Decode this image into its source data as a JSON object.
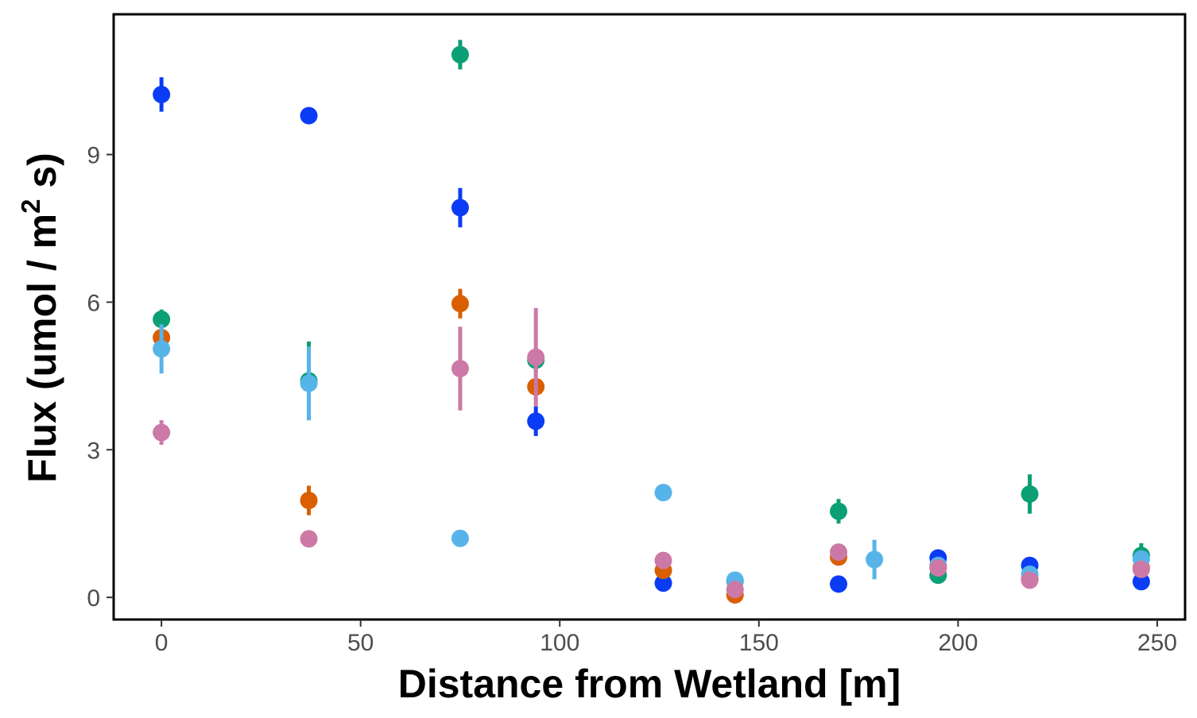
{
  "chart_data": {
    "type": "scatter",
    "title": "",
    "xlabel": "Distance from Wetland [m]",
    "ylabel": {
      "before": "Flux (umol / m",
      "superscript": "2",
      "after": " s)"
    },
    "xlim": [
      -12,
      257
    ],
    "ylim": [
      -0.45,
      11.85
    ],
    "x_ticks": [
      {
        "value": 0,
        "label": "0"
      },
      {
        "value": 50,
        "label": "50"
      },
      {
        "value": 100,
        "label": "100"
      },
      {
        "value": 150,
        "label": "150"
      },
      {
        "value": 200,
        "label": "200"
      },
      {
        "value": 250,
        "label": "250"
      }
    ],
    "y_ticks": [
      {
        "value": 0,
        "label": "0"
      },
      {
        "value": 3,
        "label": "3"
      },
      {
        "value": 6,
        "label": "6"
      },
      {
        "value": 9,
        "label": "9"
      }
    ],
    "grid": false,
    "legend": "none",
    "series": [
      {
        "color": "#0b3cf5",
        "points": [
          {
            "x": 0,
            "y": 10.22,
            "err": 0.35
          },
          {
            "x": 37,
            "y": 9.79,
            "err": 0.1
          },
          {
            "x": 75,
            "y": 7.92,
            "err": 0.4
          },
          {
            "x": 94,
            "y": 3.58,
            "err": 0.3
          },
          {
            "x": 126,
            "y": 0.29,
            "err": 0.08
          },
          {
            "x": 170,
            "y": 0.27,
            "err": 0.06
          },
          {
            "x": 195,
            "y": 0.8,
            "err": 0.1
          },
          {
            "x": 218,
            "y": 0.65,
            "err": 0.08
          },
          {
            "x": 246,
            "y": 0.32,
            "err": 0.06
          }
        ]
      },
      {
        "color": "#0b9f75",
        "points": [
          {
            "x": 0,
            "y": 5.65,
            "err": 0.2
          },
          {
            "x": 37,
            "y": 4.4,
            "err": 0.8
          },
          {
            "x": 75,
            "y": 11.03,
            "err": 0.3
          },
          {
            "x": 94,
            "y": 4.82,
            "err": 0.25
          },
          {
            "x": 144,
            "y": 0.33,
            "err": 0.08
          },
          {
            "x": 170,
            "y": 1.75,
            "err": 0.25
          },
          {
            "x": 195,
            "y": 0.45,
            "err": 0.15
          },
          {
            "x": 218,
            "y": 2.1,
            "err": 0.4
          },
          {
            "x": 246,
            "y": 0.85,
            "err": 0.25
          }
        ]
      },
      {
        "color": "#d95f02",
        "points": [
          {
            "x": 0,
            "y": 5.28,
            "err": 0.25
          },
          {
            "x": 37,
            "y": 1.97,
            "err": 0.3
          },
          {
            "x": 75,
            "y": 5.97,
            "err": 0.3
          },
          {
            "x": 94,
            "y": 4.28,
            "err": 0.15
          },
          {
            "x": 126,
            "y": 0.55,
            "err": 0.1
          },
          {
            "x": 144,
            "y": 0.05,
            "err": 0.06
          },
          {
            "x": 170,
            "y": 0.82,
            "err": 0.1
          },
          {
            "x": 195,
            "y": 0.6,
            "err": 0.1
          },
          {
            "x": 218,
            "y": 0.38,
            "err": 0.08
          },
          {
            "x": 246,
            "y": 0.6,
            "err": 0.1
          }
        ]
      },
      {
        "color": "#56b4e9",
        "points": [
          {
            "x": 0,
            "y": 5.05,
            "err": 0.5
          },
          {
            "x": 37,
            "y": 4.35,
            "err": 0.75
          },
          {
            "x": 75,
            "y": 1.2,
            "err": 0.08
          },
          {
            "x": 126,
            "y": 2.13,
            "err": 0.1
          },
          {
            "x": 144,
            "y": 0.35,
            "err": 0.08
          },
          {
            "x": 179,
            "y": 0.77,
            "err": 0.4
          },
          {
            "x": 195,
            "y": 0.65,
            "err": 0.1
          },
          {
            "x": 218,
            "y": 0.47,
            "err": 0.1
          },
          {
            "x": 246,
            "y": 0.78,
            "err": 0.12
          }
        ]
      },
      {
        "color": "#cc79a7",
        "points": [
          {
            "x": 0,
            "y": 3.35,
            "err": 0.25
          },
          {
            "x": 37,
            "y": 1.19,
            "err": 0.08
          },
          {
            "x": 75,
            "y": 4.65,
            "err": 0.85
          },
          {
            "x": 94,
            "y": 4.88,
            "err": 1.0
          },
          {
            "x": 126,
            "y": 0.75,
            "err": 0.1
          },
          {
            "x": 144,
            "y": 0.16,
            "err": 0.06
          },
          {
            "x": 170,
            "y": 0.92,
            "err": 0.1
          },
          {
            "x": 195,
            "y": 0.6,
            "err": 0.08
          },
          {
            "x": 218,
            "y": 0.35,
            "err": 0.08
          },
          {
            "x": 246,
            "y": 0.57,
            "err": 0.08
          }
        ]
      }
    ]
  }
}
